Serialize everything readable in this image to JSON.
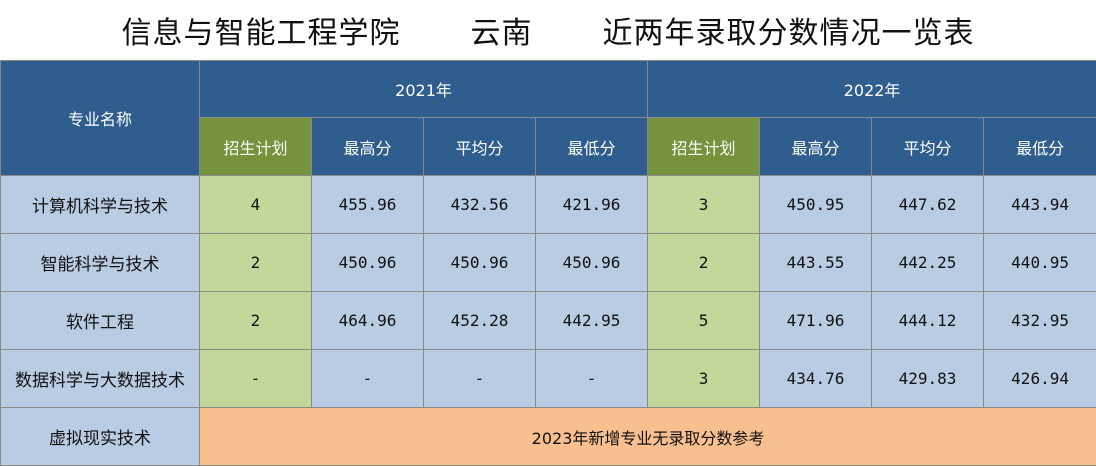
{
  "title": {
    "college": "信息与智能工程学院",
    "province": "云南",
    "subject": "近两年录取分数情况一览表"
  },
  "header": {
    "major_col": "专业名称",
    "year1": "2021年",
    "year2": "2022年",
    "plan": "招生计划",
    "max": "最高分",
    "avg": "平均分",
    "min": "最低分"
  },
  "rows": [
    {
      "name": "计算机科学与技术",
      "y2021": [
        "4",
        "455.96",
        "432.56",
        "421.96"
      ],
      "y2022": [
        "3",
        "450.95",
        "447.62",
        "443.94"
      ]
    },
    {
      "name": "智能科学与技术",
      "y2021": [
        "2",
        "450.96",
        "450.96",
        "450.96"
      ],
      "y2022": [
        "2",
        "443.55",
        "442.25",
        "440.95"
      ]
    },
    {
      "name": "软件工程",
      "y2021": [
        "2",
        "464.96",
        "452.28",
        "442.95"
      ],
      "y2022": [
        "5",
        "471.96",
        "444.12",
        "432.95"
      ]
    },
    {
      "name": "数据科学与大数据技术",
      "y2021": [
        "-",
        "-",
        "-",
        "-"
      ],
      "y2022": [
        "3",
        "434.76",
        "429.83",
        "426.94"
      ]
    }
  ],
  "last_row": {
    "name": "虚拟现实技术",
    "note": "2023年新增专业无录取分数参考"
  }
}
